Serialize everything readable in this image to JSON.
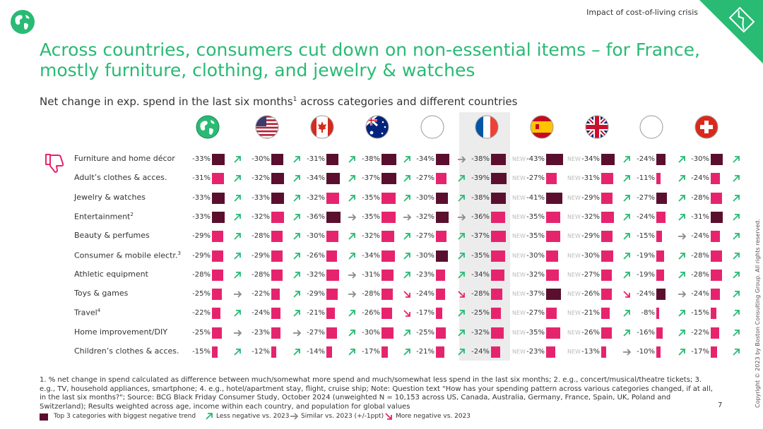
{
  "header": {
    "top_label": "Impact of cost-of-living crisis",
    "title": "Across countries, consumers cut down on non-essential items – for France, mostly furniture, clothing, and jewelry & watches",
    "subtitle": "Net change in exp. spend in the last six months",
    "subtitle_sup": "1",
    "subtitle_tail": " across categories and different countries"
  },
  "colors": {
    "accent": "#29ba74",
    "top3_bar": "#5a0f2f",
    "bar": "#e6246e",
    "arrow_up": "#29ba74",
    "arrow_flat": "#8a8a8a",
    "arrow_down": "#e6246e"
  },
  "countries": [
    {
      "flag": "globe-icon",
      "highlight": false
    },
    {
      "flag": "us-flag-icon",
      "highlight": false
    },
    {
      "flag": "canada-flag-icon",
      "highlight": false
    },
    {
      "flag": "australia-flag-icon",
      "highlight": false
    },
    {
      "flag": "blank-flag-icon",
      "highlight": false
    },
    {
      "flag": "france-flag-icon",
      "highlight": true
    },
    {
      "flag": "spain-flag-icon",
      "highlight": false
    },
    {
      "flag": "uk-flag-icon",
      "highlight": false
    },
    {
      "flag": "blank-flag-icon",
      "highlight": false
    },
    {
      "flag": "switzerland-flag-icon",
      "highlight": false
    }
  ],
  "new_label": "NEW",
  "rows": [
    {
      "label": "Furniture and home décor",
      "sup": "",
      "cells": [
        [
          "-33%",
          "up",
          1
        ],
        [
          "-30%",
          "up",
          1
        ],
        [
          "-31%",
          "up",
          1
        ],
        [
          "-38%",
          "up",
          1
        ],
        [
          "-34%",
          "flat",
          1
        ],
        [
          "-38%",
          "new",
          1
        ],
        [
          "-43%",
          "new",
          1
        ],
        [
          "-34%",
          "up",
          1
        ],
        [
          "-24%",
          "up",
          1
        ],
        [
          "-30%",
          "up",
          1
        ]
      ]
    },
    {
      "label": "Adult’s clothes & acces.",
      "sup": "",
      "cells": [
        [
          "-31%",
          "up",
          0
        ],
        [
          "-32%",
          "up",
          1
        ],
        [
          "-34%",
          "up",
          1
        ],
        [
          "-37%",
          "up",
          1
        ],
        [
          "-27%",
          "up",
          0
        ],
        [
          "-39%",
          "new",
          1
        ],
        [
          "-27%",
          "new",
          0
        ],
        [
          "-31%",
          "up",
          0
        ],
        [
          "-11%",
          "up",
          0
        ],
        [
          "-24%",
          "up",
          0
        ]
      ]
    },
    {
      "label": "Jewelry & watches",
      "sup": "",
      "cells": [
        [
          "-33%",
          "up",
          1
        ],
        [
          "-33%",
          "up",
          1
        ],
        [
          "-32%",
          "up",
          0
        ],
        [
          "-35%",
          "up",
          0
        ],
        [
          "-30%",
          "up",
          1
        ],
        [
          "-38%",
          "new",
          1
        ],
        [
          "-41%",
          "new",
          1
        ],
        [
          "-29%",
          "up",
          0
        ],
        [
          "-27%",
          "up",
          1
        ],
        [
          "-28%",
          "up",
          0
        ]
      ]
    },
    {
      "label": "Entertainment",
      "sup": "2",
      "cells": [
        [
          "-33%",
          "up",
          1
        ],
        [
          "-32%",
          "up",
          0
        ],
        [
          "-36%",
          "flat",
          1
        ],
        [
          "-35%",
          "flat",
          0
        ],
        [
          "-32%",
          "flat",
          1
        ],
        [
          "-36%",
          "new",
          0
        ],
        [
          "-35%",
          "new",
          0
        ],
        [
          "-32%",
          "up",
          0
        ],
        [
          "-24%",
          "up",
          0
        ],
        [
          "-31%",
          "up",
          1
        ]
      ]
    },
    {
      "label": "Beauty & perfumes",
      "sup": "",
      "cells": [
        [
          "-29%",
          "up",
          0
        ],
        [
          "-28%",
          "up",
          0
        ],
        [
          "-30%",
          "up",
          0
        ],
        [
          "-32%",
          "up",
          0
        ],
        [
          "-27%",
          "up",
          0
        ],
        [
          "-37%",
          "new",
          0
        ],
        [
          "-35%",
          "new",
          0
        ],
        [
          "-29%",
          "up",
          0
        ],
        [
          "-15%",
          "flat",
          0
        ],
        [
          "-24%",
          "up",
          0
        ]
      ]
    },
    {
      "label": "Consumer & mobile electr.",
      "sup": "3",
      "cells": [
        [
          "-29%",
          "up",
          0
        ],
        [
          "-29%",
          "up",
          0
        ],
        [
          "-26%",
          "up",
          0
        ],
        [
          "-34%",
          "up",
          0
        ],
        [
          "-30%",
          "up",
          1
        ],
        [
          "-35%",
          "new",
          0
        ],
        [
          "-30%",
          "new",
          0
        ],
        [
          "-30%",
          "up",
          0
        ],
        [
          "-19%",
          "up",
          0
        ],
        [
          "-28%",
          "up",
          0
        ]
      ]
    },
    {
      "label": "Athletic equipment",
      "sup": "",
      "cells": [
        [
          "-28%",
          "up",
          0
        ],
        [
          "-28%",
          "up",
          0
        ],
        [
          "-32%",
          "flat",
          0
        ],
        [
          "-31%",
          "up",
          0
        ],
        [
          "-23%",
          "up",
          0
        ],
        [
          "-34%",
          "new",
          0
        ],
        [
          "-32%",
          "new",
          0
        ],
        [
          "-27%",
          "up",
          0
        ],
        [
          "-19%",
          "up",
          0
        ],
        [
          "-28%",
          "up",
          0
        ]
      ]
    },
    {
      "label": "Toys & games",
      "sup": "",
      "cells": [
        [
          "-25%",
          "flat",
          0
        ],
        [
          "-22%",
          "up",
          0
        ],
        [
          "-29%",
          "flat",
          0
        ],
        [
          "-28%",
          "down",
          0
        ],
        [
          "-24%",
          "down",
          0
        ],
        [
          "-28%",
          "new",
          0
        ],
        [
          "-37%",
          "new",
          1
        ],
        [
          "-26%",
          "down",
          0
        ],
        [
          "-24%",
          "flat",
          1
        ],
        [
          "-24%",
          "up",
          0
        ]
      ]
    },
    {
      "label": "Travel",
      "sup": "4",
      "cells": [
        [
          "-22%",
          "up",
          0
        ],
        [
          "-24%",
          "up",
          0
        ],
        [
          "-21%",
          "up",
          0
        ],
        [
          "-26%",
          "down",
          0
        ],
        [
          "-17%",
          "up",
          0
        ],
        [
          "-25%",
          "new",
          0
        ],
        [
          "-27%",
          "new",
          0
        ],
        [
          "-21%",
          "up",
          0
        ],
        [
          "-8%",
          "up",
          0
        ],
        [
          "-15%",
          "up",
          0
        ]
      ]
    },
    {
      "label": "Home improvement/DIY",
      "sup": "",
      "cells": [
        [
          "-25%",
          "flat",
          0
        ],
        [
          "-23%",
          "flat",
          0
        ],
        [
          "-27%",
          "up",
          0
        ],
        [
          "-30%",
          "up",
          0
        ],
        [
          "-25%",
          "up",
          0
        ],
        [
          "-32%",
          "new",
          0
        ],
        [
          "-35%",
          "new",
          0
        ],
        [
          "-26%",
          "up",
          0
        ],
        [
          "-16%",
          "up",
          0
        ],
        [
          "-22%",
          "up",
          0
        ]
      ]
    },
    {
      "label": "Children’s clothes & acces.",
      "sup": "",
      "cells": [
        [
          "-15%",
          "up",
          0
        ],
        [
          "-12%",
          "up",
          0
        ],
        [
          "-14%",
          "up",
          0
        ],
        [
          "-17%",
          "up",
          0
        ],
        [
          "-21%",
          "up",
          0
        ],
        [
          "-24%",
          "new",
          0
        ],
        [
          "-23%",
          "new",
          0
        ],
        [
          "-13%",
          "flat",
          0
        ],
        [
          "-10%",
          "up",
          0
        ],
        [
          "-17%",
          "up",
          0
        ]
      ]
    }
  ],
  "footnote": "1. % net change in spend calculated as difference between much/somewhat more spend and much/somewhat less spend in the last six months; 2. e.g., concert/musical/theatre tickets; 3. e.g., TV, household appliances, smartphone; 4. e.g., hotel/apartment stay, flight, cruise ship; Note: Question text \"How has your spending pattern across various categories changed, if at all, in the last six months?\"; Source: BCG Black Friday Consumer Study, October 2024 (unweighted N = 10,153 across US, Canada, Australia, Germany, France, Spain, UK, Poland and Switzerland); Results weighted across age, income within each country, and population for global values",
  "page_number": "7",
  "copyright": "Copyright © 2023 by Boston Consulting Group. All rights reserved.",
  "legend": {
    "top3": "Top 3 categories with biggest negative trend",
    "less": "Less negative vs. 2023",
    "similar": "Similar vs. 2023 (+/-1ppt)",
    "more": "More negative vs. 2023"
  }
}
